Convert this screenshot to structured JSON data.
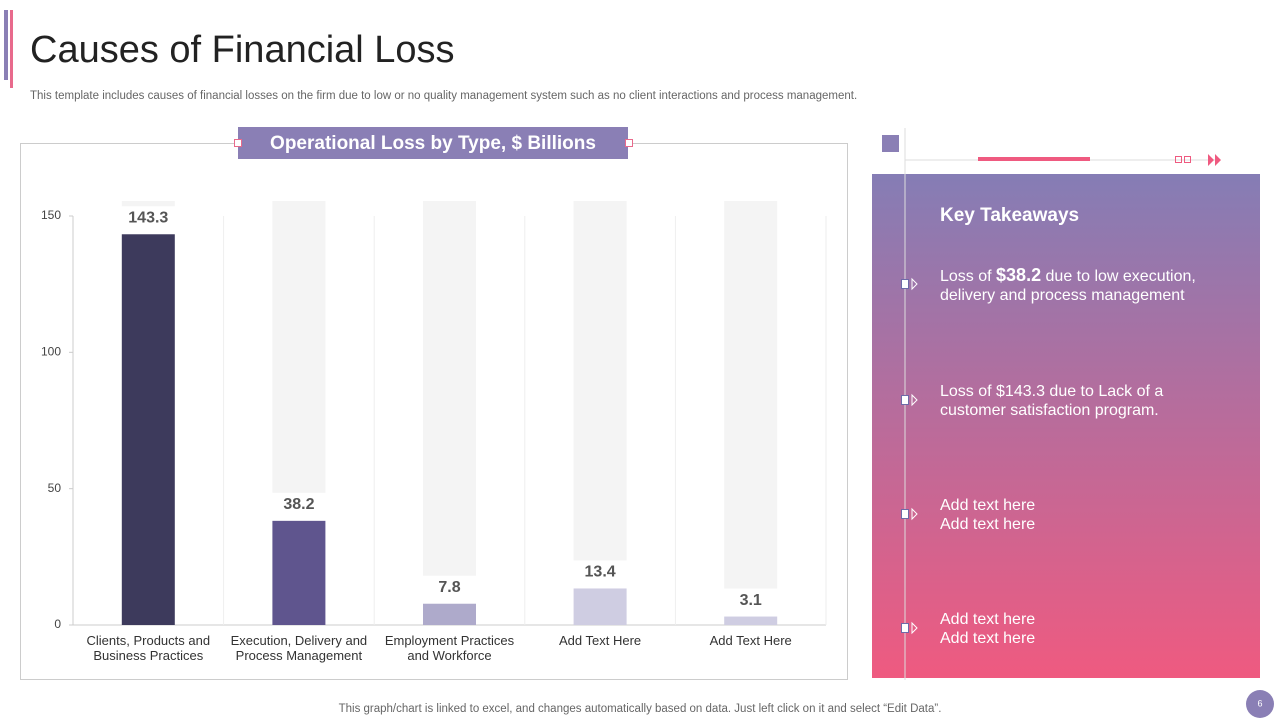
{
  "slide_title": "Causes of Financial Loss",
  "subtitle": "This template includes causes of financial losses on the firm due to low or no quality management system such as no client interactions and process management.",
  "chart_data": {
    "type": "bar",
    "title": "Operational Loss by Type, $ Billions",
    "categories": [
      "Clients, Products and Business Practices",
      "Execution, Delivery and Process Management",
      "Employment Practices and Workforce",
      "Add Text Here",
      "Add Text Here"
    ],
    "values": [
      143.3,
      38.2,
      7.8,
      13.4,
      3.1
    ],
    "colors": [
      "#3d3a5c",
      "#5f558e",
      "#aeaacb",
      "#cfcde2",
      "#cfcde2"
    ],
    "ylim": [
      0,
      150
    ],
    "yticks": [
      0,
      50,
      100,
      150
    ]
  },
  "takeaways": {
    "title": "Key Takeaways",
    "items": [
      {
        "before": "Loss of ",
        "highlight": "$38.2",
        "after": " due to low execution, delivery and process management"
      },
      {
        "lines": [
          "Loss of $143.3 due to Lack of a customer satisfaction program."
        ]
      },
      {
        "lines": [
          "Add text here",
          "Add text here"
        ]
      },
      {
        "lines": [
          "Add text here",
          "Add text here"
        ]
      }
    ]
  },
  "footer": "This graph/chart is linked to excel, and changes automatically based on data. Just left click on it and select “Edit Data”.",
  "page_number": "6"
}
